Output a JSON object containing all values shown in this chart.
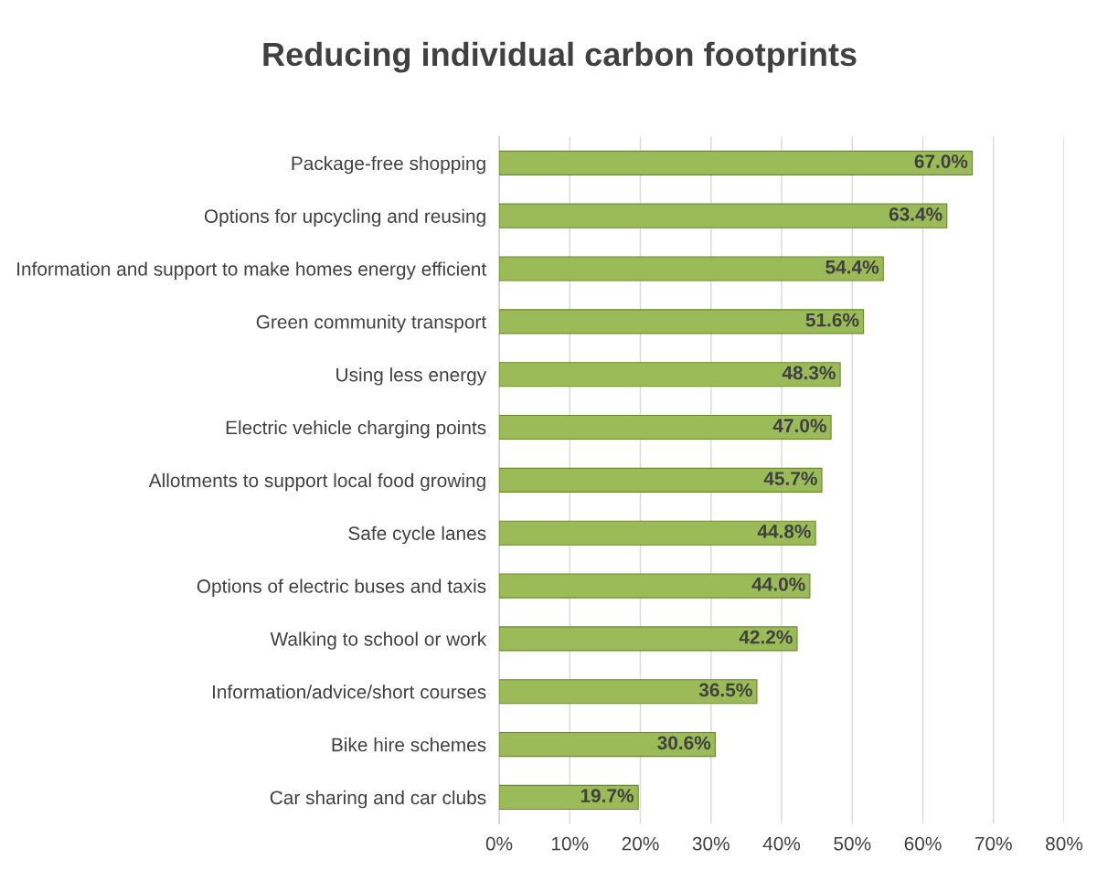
{
  "chart_data": {
    "type": "bar",
    "orientation": "horizontal",
    "title": "Reducing individual carbon footprints",
    "categories": [
      "Package-free shopping",
      "Options for upcycling and reusing",
      "Information and support to make homes energy efficient",
      "Green community transport",
      "Using less energy",
      "Electric vehicle charging points",
      "Allotments to support local food growing",
      "Safe cycle lanes",
      "Options of electric buses and taxis",
      "Walking to school or work",
      "Information/advice/short courses",
      "Bike hire schemes",
      "Car sharing and car clubs"
    ],
    "values": [
      67.0,
      63.4,
      54.4,
      51.6,
      48.3,
      47.0,
      45.7,
      44.8,
      44.0,
      42.2,
      36.5,
      30.6,
      19.7
    ],
    "value_labels": [
      "67.0%",
      "63.4%",
      "54.4%",
      "51.6%",
      "48.3%",
      "47.0%",
      "45.7%",
      "44.8%",
      "44.0%",
      "42.2%",
      "36.5%",
      "30.6%",
      "19.7%"
    ],
    "color": "#9bbb59",
    "xlim": [
      0,
      80
    ],
    "xticks": [
      {
        "value": 0,
        "label": "0%"
      },
      {
        "value": 10,
        "label": "10%"
      },
      {
        "value": 20,
        "label": "20%"
      },
      {
        "value": 30,
        "label": "30%"
      },
      {
        "value": 40,
        "label": "40%"
      },
      {
        "value": 50,
        "label": "50%"
      },
      {
        "value": 60,
        "label": "60%"
      },
      {
        "value": 70,
        "label": "70%"
      },
      {
        "value": 80,
        "label": "80%"
      }
    ],
    "grid": "x"
  }
}
